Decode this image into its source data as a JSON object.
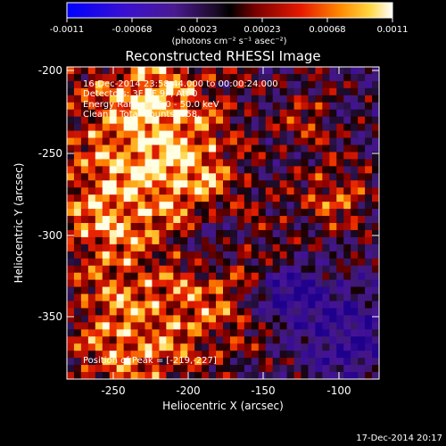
{
  "colorbar": {
    "ticks": [
      "-0.0011",
      "-0.00068",
      "-0.00023",
      "0.00023",
      "0.00068",
      "0.0011"
    ],
    "units_label": "(photons cm⁻² s⁻¹ asec⁻²)"
  },
  "plot": {
    "title": "Reconstructed RHESSI Image",
    "xlabel": "Heliocentric X (arcsec)",
    "ylabel": "Heliocentric Y (arcsec)",
    "xticks": [
      "-250",
      "-200",
      "-150",
      "-100"
    ],
    "yticks": [
      "-200",
      "-250",
      "-300",
      "-350"
    ]
  },
  "annotations": {
    "time_range": "16-Dec-2014 23:58:44.000 to 00:00:24.000",
    "detectors": "Detectors: 3F 6F 9F, Att 0",
    "energy_range": "Energy Range: 26.0 - 50.0 keV",
    "clean_counts": "Clean    Total Counts: 858.",
    "peak_position": "Position of Peak = [-219,-227]"
  },
  "footer": {
    "timestamp": "17-Dec-2014 20:17"
  },
  "colors": {
    "background": "#000000",
    "text": "#ffffff"
  }
}
